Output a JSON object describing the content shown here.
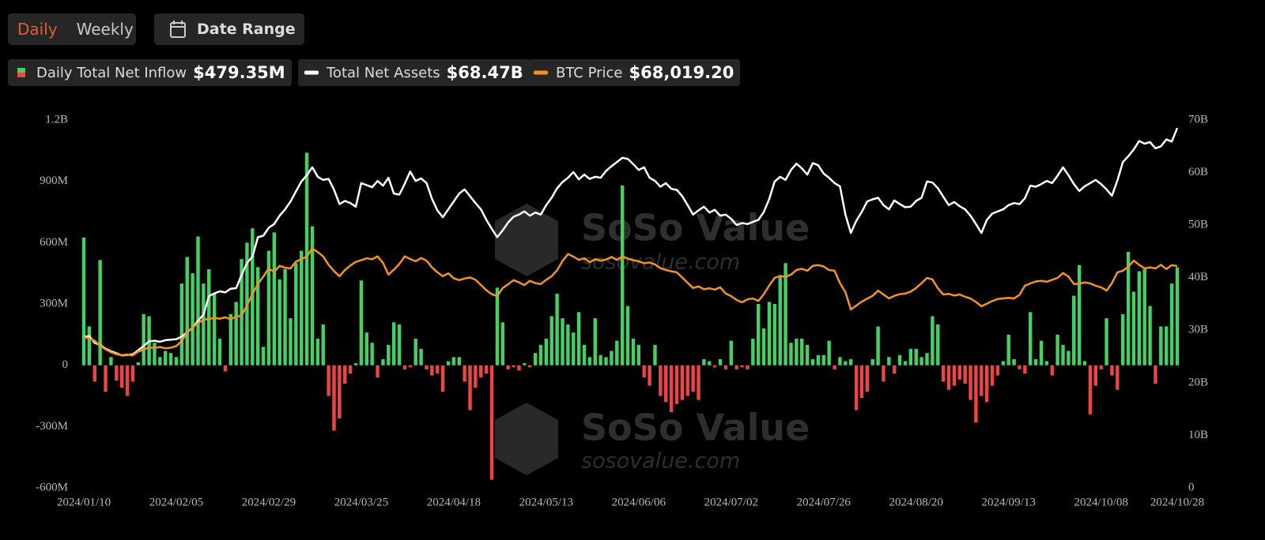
{
  "controls": {
    "period_buttons": [
      "Daily",
      "Weekly"
    ],
    "date_range": "Date Range"
  },
  "watermark": {
    "brand": "SoSo Value",
    "url": "sosovalue.com"
  },
  "chart_data": {
    "type": "combo",
    "categories": [
      "2024/01/10",
      null,
      null,
      null,
      null,
      null,
      null,
      null,
      null,
      null,
      null,
      null,
      null,
      null,
      null,
      null,
      null,
      "2024/02/05",
      null,
      null,
      null,
      null,
      null,
      null,
      null,
      null,
      null,
      null,
      null,
      null,
      null,
      null,
      null,
      null,
      "2024/02/29",
      null,
      null,
      null,
      null,
      null,
      null,
      null,
      null,
      null,
      null,
      null,
      null,
      null,
      null,
      null,
      null,
      "2024/03/25",
      null,
      null,
      null,
      null,
      null,
      null,
      null,
      null,
      null,
      null,
      null,
      null,
      null,
      null,
      null,
      null,
      "2024/04/18",
      null,
      null,
      null,
      null,
      null,
      null,
      null,
      null,
      null,
      null,
      null,
      null,
      null,
      null,
      null,
      null,
      "2024/05/13",
      null,
      null,
      null,
      null,
      null,
      null,
      null,
      null,
      null,
      null,
      null,
      null,
      null,
      null,
      null,
      null,
      "2024/06/06",
      null,
      null,
      null,
      null,
      null,
      null,
      null,
      null,
      null,
      null,
      null,
      null,
      null,
      null,
      null,
      null,
      "2024/07/02",
      null,
      null,
      null,
      null,
      null,
      null,
      null,
      null,
      null,
      null,
      null,
      null,
      null,
      null,
      null,
      null,
      "2024/07/26",
      null,
      null,
      null,
      null,
      null,
      null,
      null,
      null,
      null,
      null,
      null,
      null,
      null,
      null,
      null,
      null,
      "2024/08/20",
      null,
      null,
      null,
      null,
      null,
      null,
      null,
      null,
      null,
      null,
      null,
      null,
      null,
      null,
      null,
      null,
      "2024/09/13",
      null,
      null,
      null,
      null,
      null,
      null,
      null,
      null,
      null,
      null,
      null,
      null,
      null,
      null,
      null,
      null,
      "2024/10/08",
      null,
      null,
      null,
      null,
      null,
      null,
      null,
      null,
      null,
      null,
      null,
      null,
      null,
      "2024/10/28"
    ],
    "ylim": [
      -600,
      1200
    ],
    "yticks": [
      {
        "value": -600,
        "label": "-600M"
      },
      {
        "value": -300,
        "label": "-300M"
      },
      0,
      {
        "value": 300,
        "label": "300M"
      },
      {
        "value": 600,
        "label": "600M"
      },
      {
        "value": 900,
        "label": "900M"
      },
      {
        "value": 1200,
        "label": "1.2B"
      }
    ],
    "y2lim": [
      0,
      70
    ],
    "y2ticks": [
      0,
      {
        "value": 10,
        "label": "10B"
      },
      {
        "value": 20,
        "label": "20B"
      },
      {
        "value": 30,
        "label": "30B"
      },
      {
        "value": 40,
        "label": "40B"
      },
      {
        "value": 50,
        "label": "50B"
      },
      {
        "value": 60,
        "label": "60B"
      },
      {
        "value": 70,
        "label": "70B"
      }
    ],
    "y3lim": [
      0,
      112800
    ],
    "series": [
      {
        "name": "Daily Total Net Inflow",
        "legend_value": "$479.35M",
        "type": "bar",
        "axis": "y",
        "color": "#44d062",
        "negative_color": "#ef4444",
        "values": [
          625,
          190,
          -80,
          515,
          -130,
          40,
          -75,
          -110,
          -150,
          -80,
          15,
          250,
          240,
          110,
          40,
          70,
          60,
          40,
          400,
          530,
          450,
          630,
          400,
          470,
          350,
          130,
          -30,
          250,
          310,
          520,
          600,
          670,
          480,
          90,
          560,
          650,
          420,
          470,
          230,
          500,
          560,
          1040,
          680,
          130,
          200,
          -150,
          -320,
          -260,
          -90,
          -40,
          10,
          415,
          160,
          110,
          -60,
          30,
          100,
          210,
          200,
          -20,
          -10,
          130,
          80,
          -20,
          -50,
          -40,
          -130,
          20,
          40,
          40,
          -80,
          -220,
          -110,
          -60,
          -40,
          -560,
          380,
          210,
          -20,
          -10,
          -25,
          10,
          -10,
          60,
          100,
          130,
          240,
          350,
          230,
          200,
          160,
          260,
          100,
          40,
          230,
          50,
          40,
          70,
          120,
          880,
          290,
          130,
          100,
          -60,
          -100,
          100,
          -150,
          -180,
          -230,
          -190,
          -170,
          -150,
          -130,
          -170,
          30,
          20,
          -10,
          30,
          -20,
          120,
          -20,
          -10,
          -20,
          130,
          300,
          180,
          310,
          300,
          440,
          500,
          110,
          130,
          130,
          100,
          30,
          50,
          50,
          120,
          -20,
          40,
          20,
          30,
          -220,
          -160,
          -130,
          30,
          190,
          -80,
          40,
          -40,
          50,
          20,
          80,
          80,
          40,
          60,
          240,
          200,
          -80,
          -120,
          -100,
          -70,
          -90,
          -170,
          -280,
          -150,
          -180,
          -100,
          -50,
          20,
          150,
          30,
          -20,
          -40,
          260,
          30,
          120,
          20,
          -50,
          150,
          100,
          70,
          340,
          490,
          20,
          -240,
          -100,
          -20,
          230,
          -50,
          -120,
          250,
          555,
          360,
          460,
          470,
          290,
          -90,
          190,
          190,
          400,
          479.35
        ]
      },
      {
        "name": "Total Net Assets",
        "legend_value": "$68.47B",
        "type": "line",
        "axis": "y2",
        "color": "#ffffff",
        "values": [
          28.7,
          28.9,
          27.6,
          27.2,
          26.5,
          26.0,
          25.6,
          25.2,
          25.3,
          25.4,
          26.2,
          27.0,
          27.9,
          28.0,
          27.8,
          28.1,
          28.2,
          28.3,
          28.8,
          29.6,
          30.5,
          31.8,
          33.0,
          36.5,
          37.0,
          37.4,
          37.2,
          37.9,
          38.0,
          40.5,
          42.8,
          44.0,
          47.7,
          48.0,
          49.5,
          50.2,
          51.8,
          53.0,
          54.5,
          56.4,
          58.3,
          59.5,
          61.0,
          59.2,
          58.6,
          58.8,
          56.7,
          54.0,
          54.6,
          54.2,
          53.5,
          58.0,
          57.6,
          57.2,
          58.4,
          57.5,
          59.0,
          56.0,
          55.8,
          57.9,
          60.2,
          58.4,
          58.9,
          58.0,
          55.0,
          52.8,
          51.5,
          53.0,
          54.5,
          56.0,
          56.8,
          55.5,
          54.2,
          53.0,
          51.0,
          49.3,
          47.7,
          49.0,
          50.5,
          51.6,
          52.0,
          52.6,
          51.8,
          52.4,
          52.0,
          53.8,
          55.2,
          57.0,
          58.2,
          59.0,
          60.1,
          58.7,
          59.6,
          58.8,
          59.2,
          59.0,
          60.3,
          61.2,
          62.0,
          62.8,
          62.6,
          61.6,
          60.5,
          61.0,
          59.0,
          58.4,
          57.3,
          58.0,
          56.9,
          56.7,
          55.5,
          53.8,
          52.0,
          52.8,
          53.5,
          52.4,
          52.9,
          51.8,
          52.0,
          51.2,
          50.0,
          50.4,
          50.2,
          50.6,
          51.0,
          52.5,
          55.0,
          58.3,
          59.2,
          58.6,
          60.5,
          61.7,
          60.8,
          59.6,
          61.8,
          61.4,
          59.8,
          59.0,
          58.0,
          57.4,
          52.0,
          48.5,
          50.8,
          52.5,
          54.5,
          54.9,
          55.2,
          53.8,
          53.0,
          54.7,
          54.0,
          53.4,
          53.5,
          54.6,
          55.2,
          58.3,
          58.1,
          57.0,
          55.4,
          53.8,
          54.4,
          53.6,
          53.0,
          51.8,
          50.2,
          48.5,
          51.0,
          52.2,
          52.6,
          53.0,
          53.8,
          54.2,
          54.0,
          55.1,
          57.5,
          57.3,
          57.8,
          58.4,
          58.0,
          59.4,
          61.0,
          59.5,
          57.8,
          56.5,
          57.4,
          58.0,
          58.6,
          57.8,
          56.8,
          55.6,
          58.5,
          62.0,
          63.1,
          64.4,
          66.0,
          65.5,
          65.8,
          64.6,
          65.0,
          66.3,
          65.9,
          68.47
        ]
      },
      {
        "name": "BTC Price",
        "legend_value": "$68,019.20",
        "type": "line",
        "axis": "y3",
        "color": "#f7931a",
        "values": [
          46250,
          45800,
          45100,
          43600,
          42500,
          41600,
          41000,
          40700,
          40900,
          40600,
          41800,
          42400,
          43100,
          42900,
          43200,
          42800,
          43000,
          43500,
          45000,
          47800,
          49200,
          50500,
          51600,
          51800,
          52100,
          51900,
          52300,
          51700,
          52500,
          52800,
          56000,
          59500,
          62500,
          64800,
          67300,
          66200,
          68100,
          67500,
          67300,
          69400,
          70100,
          71000,
          73400,
          72300,
          71000,
          68400,
          66500,
          64900,
          66800,
          68200,
          69300,
          69800,
          70400,
          70100,
          71000,
          69000,
          65400,
          66900,
          68700,
          71000,
          70200,
          69500,
          70500,
          69700,
          67600,
          66100,
          64900,
          65800,
          64300,
          63700,
          64200,
          64500,
          63800,
          62200,
          60600,
          59400,
          58800,
          61300,
          62400,
          63700,
          63000,
          62200,
          63500,
          62800,
          62500,
          63800,
          64900,
          66700,
          69600,
          71700,
          70900,
          69900,
          70400,
          69200,
          70100,
          69700,
          70000,
          70800,
          69900,
          71000,
          70300,
          69800,
          69500,
          68900,
          69100,
          68500,
          67400,
          66800,
          66400,
          66100,
          64500,
          62900,
          61300,
          61800,
          60900,
          61200,
          60800,
          61500,
          59600,
          58800,
          57600,
          56900,
          57800,
          58100,
          57300,
          59400,
          62100,
          64400,
          65000,
          64700,
          65400,
          66800,
          67200,
          66600,
          68100,
          68300,
          67900,
          66800,
          66600,
          62800,
          60000,
          54700,
          55900,
          57100,
          58000,
          58900,
          60500,
          59300,
          58100,
          58900,
          59400,
          59600,
          60200,
          61300,
          62800,
          64400,
          63900,
          61200,
          59300,
          59500,
          59000,
          59300,
          58600,
          58100,
          57000,
          55700,
          56500,
          57300,
          57900,
          58100,
          58300,
          58100,
          59200,
          62000,
          62700,
          63300,
          63500,
          63200,
          63800,
          64400,
          65900,
          64800,
          62500,
          62600,
          63000,
          62700,
          62000,
          61500,
          60500,
          62800,
          66100,
          66600,
          67800,
          69700,
          68400,
          67300,
          67600,
          67300,
          68400,
          67100,
          68300,
          68019.2
        ]
      }
    ]
  }
}
